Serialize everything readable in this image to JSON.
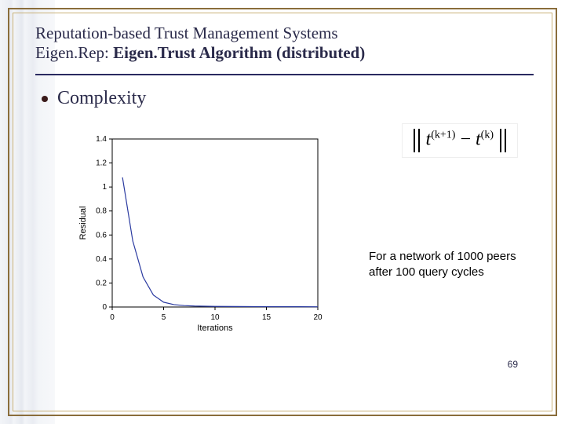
{
  "slide": {
    "title_line1": "Reputation-based Trust Management Systems",
    "title_line2_prefix": "Eigen.Rep: ",
    "title_line2_bold": "Eigen.Trust Algorithm (distributed)",
    "bullet": "Complexity",
    "caption": "For a network of 1000 peers after 100 query cycles",
    "page_number": "69"
  },
  "formula": {
    "lhs_base": "t",
    "lhs_sup": "(k+1)",
    "minus": " − ",
    "rhs_base": "t",
    "rhs_sup": "(k)"
  },
  "chart": {
    "type": "line",
    "xlabel": "Iterations",
    "ylabel": "Residual",
    "xlim": [
      0,
      20
    ],
    "ylim": [
      0,
      1.4
    ],
    "xticks": [
      0,
      5,
      10,
      15,
      20
    ],
    "yticks": [
      0,
      0.2,
      0.4,
      0.6,
      0.8,
      1.0,
      1.2,
      1.4
    ],
    "line_color": "#2a3aa0",
    "axis_color": "#000000",
    "tick_fontsize": 10,
    "label_fontsize": 11,
    "line_width": 1.2,
    "series": {
      "x": [
        1,
        2,
        3,
        4,
        5,
        6,
        7,
        8,
        10,
        12,
        15,
        18,
        20
      ],
      "y": [
        1.08,
        0.55,
        0.25,
        0.1,
        0.04,
        0.02,
        0.012,
        0.008,
        0.005,
        0.004,
        0.003,
        0.0025,
        0.002
      ]
    }
  },
  "frame": {
    "outer_border_color": "#8a6d3b",
    "inner_border_color": "#c9b178",
    "rule_color": "#2a2a60"
  }
}
